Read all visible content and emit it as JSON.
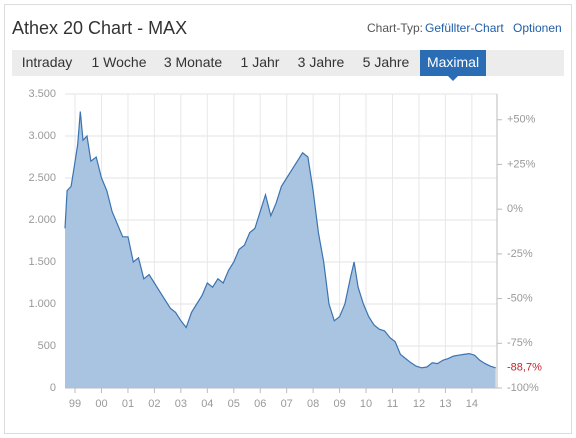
{
  "header": {
    "title": "Athex 20 Chart - MAX",
    "chart_type_label": "Chart-Typ:",
    "chart_type": "Gefüllter-Chart",
    "options": "Optionen"
  },
  "tabs": [
    "Intraday",
    "1 Woche",
    "3 Monate",
    "1 Jahr",
    "3 Jahre",
    "5 Jahre",
    "Maximal"
  ],
  "active_tab": 6,
  "chart_data": {
    "type": "area",
    "x": [
      1998.62,
      1998.7,
      1998.85,
      1999.0,
      1999.1,
      1999.2,
      1999.3,
      1999.45,
      1999.6,
      1999.8,
      2000.0,
      2000.2,
      2000.4,
      2000.6,
      2000.8,
      2001.0,
      2001.2,
      2001.4,
      2001.6,
      2001.8,
      2002.0,
      2002.2,
      2002.4,
      2002.6,
      2002.8,
      2003.0,
      2003.2,
      2003.4,
      2003.6,
      2003.8,
      2004.0,
      2004.2,
      2004.4,
      2004.6,
      2004.8,
      2005.0,
      2005.2,
      2005.4,
      2005.6,
      2005.8,
      2006.0,
      2006.2,
      2006.4,
      2006.6,
      2006.8,
      2007.0,
      2007.2,
      2007.4,
      2007.6,
      2007.8,
      2008.0,
      2008.2,
      2008.4,
      2008.6,
      2008.8,
      2009.0,
      2009.2,
      2009.4,
      2009.55,
      2009.7,
      2009.9,
      2010.1,
      2010.3,
      2010.5,
      2010.7,
      2010.9,
      2011.1,
      2011.3,
      2011.5,
      2011.7,
      2011.9,
      2012.1,
      2012.3,
      2012.5,
      2012.7,
      2012.9,
      2013.1,
      2013.3,
      2013.5,
      2013.7,
      2013.9,
      2014.1,
      2014.3,
      2014.5,
      2014.7,
      2014.9
    ],
    "values": [
      1900,
      2350,
      2400,
      2700,
      2900,
      3290,
      2950,
      3000,
      2700,
      2750,
      2500,
      2350,
      2100,
      1950,
      1800,
      1800,
      1500,
      1550,
      1300,
      1350,
      1250,
      1150,
      1050,
      950,
      900,
      800,
      720,
      900,
      1000,
      1100,
      1250,
      1200,
      1300,
      1250,
      1400,
      1500,
      1650,
      1700,
      1850,
      1900,
      2100,
      2300,
      2050,
      2200,
      2400,
      2500,
      2600,
      2700,
      2800,
      2750,
      2350,
      1850,
      1500,
      1000,
      800,
      850,
      1000,
      1300,
      1500,
      1200,
      1000,
      850,
      750,
      700,
      680,
      600,
      550,
      400,
      350,
      300,
      260,
      240,
      250,
      300,
      290,
      330,
      350,
      380,
      390,
      400,
      410,
      390,
      330,
      290,
      260,
      240
    ],
    "color": "#3b73b1",
    "fill": "#a9c4e0",
    "xlim": [
      1998.62,
      2014.95
    ],
    "xticks": [
      {
        "value": 1999,
        "label": "99"
      },
      {
        "value": 2000,
        "label": "00"
      },
      {
        "value": 2001,
        "label": "01"
      },
      {
        "value": 2002,
        "label": "02"
      },
      {
        "value": 2003,
        "label": "03"
      },
      {
        "value": 2004,
        "label": "04"
      },
      {
        "value": 2005,
        "label": "05"
      },
      {
        "value": 2006,
        "label": "06"
      },
      {
        "value": 2007,
        "label": "07"
      },
      {
        "value": 2008,
        "label": "08"
      },
      {
        "value": 2009,
        "label": "09"
      },
      {
        "value": 2010,
        "label": "10"
      },
      {
        "value": 2011,
        "label": "11"
      },
      {
        "value": 2012,
        "label": "12"
      },
      {
        "value": 2013,
        "label": "13"
      },
      {
        "value": 2014,
        "label": "14"
      }
    ],
    "ylim": [
      0,
      3500
    ],
    "yticks": [
      0,
      500,
      {
        "value": 1000,
        "label": "1.000"
      },
      {
        "value": 1500,
        "label": "1.500"
      },
      {
        "value": 2000,
        "label": "2.000"
      },
      {
        "value": 2500,
        "label": "2.500"
      },
      {
        "value": 3000,
        "label": "3.000"
      },
      {
        "value": 3500,
        "label": "3.500"
      }
    ],
    "y2lim": [
      -100,
      64.4
    ],
    "y2ticks": [
      {
        "value": -100,
        "label": "-100%"
      },
      {
        "value": -75,
        "label": "-75%"
      },
      {
        "value": -50,
        "label": "-50%"
      },
      {
        "value": -25,
        "label": "-25%"
      },
      {
        "value": 0,
        "label": "0%"
      },
      {
        "value": 25,
        "label": "+25%"
      },
      {
        "value": 50,
        "label": "+50%"
      }
    ],
    "annotation": {
      "text": "-88,7%",
      "value": -88.7,
      "color": "#c0272d"
    },
    "grid": true
  }
}
